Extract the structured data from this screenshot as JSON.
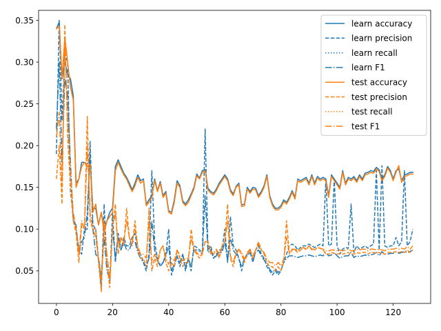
{
  "chart_data": {
    "type": "line",
    "title": "",
    "xlabel": "",
    "ylabel": "",
    "xlim": [
      -6.35,
      133.35
    ],
    "ylim": [
      0.011,
      0.362
    ],
    "xticks": [
      0,
      20,
      40,
      60,
      80,
      100,
      120
    ],
    "yticks": [
      0.05,
      0.1,
      0.15,
      0.2,
      0.25,
      0.3,
      0.35
    ],
    "legend_position": "top-right",
    "grid": false,
    "colors": {
      "learn": "#1f77b4",
      "test": "#ff7f0e"
    },
    "x_start": 0,
    "series": [
      {
        "name": "learn accuracy",
        "color": "#1f77b4",
        "dash": "solid",
        "values": [
          0.34,
          0.348,
          0.28,
          0.3,
          0.285,
          0.28,
          0.26,
          0.155,
          0.16,
          0.18,
          0.18,
          0.178,
          0.182,
          0.125,
          0.125,
          0.105,
          0.12,
          0.1,
          0.11,
          0.12,
          0.125,
          0.175,
          0.183,
          0.175,
          0.167,
          0.162,
          0.155,
          0.147,
          0.155,
          0.165,
          0.158,
          0.16,
          0.13,
          0.135,
          0.14,
          0.16,
          0.146,
          0.157,
          0.14,
          0.145,
          0.122,
          0.12,
          0.135,
          0.158,
          0.152,
          0.134,
          0.13,
          0.135,
          0.142,
          0.15,
          0.166,
          0.161,
          0.17,
          0.171,
          0.149,
          0.145,
          0.143,
          0.148,
          0.155,
          0.16,
          0.165,
          0.16,
          0.147,
          0.142,
          0.151,
          0.155,
          0.129,
          0.13,
          0.15,
          0.145,
          0.15,
          0.149,
          0.14,
          0.145,
          0.152,
          0.165,
          0.14,
          0.13,
          0.125,
          0.125,
          0.128,
          0.135,
          0.132,
          0.138,
          0.146,
          0.138,
          0.16,
          0.158,
          0.16,
          0.162,
          0.155,
          0.165,
          0.155,
          0.163,
          0.16,
          0.162,
          0.16,
          0.14,
          0.165,
          0.16,
          0.155,
          0.15,
          0.17,
          0.155,
          0.162,
          0.16,
          0.163,
          0.158,
          0.165,
          0.16,
          0.167,
          0.168,
          0.17,
          0.169,
          0.174,
          0.171,
          0.16,
          0.165,
          0.175,
          0.17,
          0.16,
          0.17,
          0.172,
          0.158,
          0.165,
          0.166,
          0.168,
          0.168
        ]
      },
      {
        "name": "learn precision",
        "color": "#1f77b4",
        "dash": "dashed",
        "values": [
          0.19,
          0.35,
          0.23,
          0.31,
          0.3,
          0.145,
          0.115,
          0.1,
          0.075,
          0.07,
          0.1,
          0.1,
          0.205,
          0.105,
          0.1,
          0.065,
          0.03,
          0.13,
          0.06,
          0.035,
          0.12,
          0.06,
          0.095,
          0.075,
          0.09,
          0.08,
          0.08,
          0.09,
          0.095,
          0.075,
          0.07,
          0.06,
          0.05,
          0.07,
          0.17,
          0.085,
          0.065,
          0.055,
          0.06,
          0.07,
          0.1,
          0.045,
          0.055,
          0.068,
          0.055,
          0.07,
          0.05,
          0.065,
          0.05,
          0.08,
          0.078,
          0.075,
          0.072,
          0.22,
          0.075,
          0.08,
          0.065,
          0.07,
          0.075,
          0.075,
          0.1,
          0.06,
          0.115,
          0.08,
          0.075,
          0.065,
          0.05,
          0.065,
          0.07,
          0.075,
          0.06,
          0.075,
          0.08,
          0.07,
          0.065,
          0.055,
          0.05,
          0.045,
          0.05,
          0.045,
          0.05,
          0.06,
          0.07,
          0.08,
          0.082,
          0.08,
          0.075,
          0.078,
          0.08,
          0.08,
          0.082,
          0.08,
          0.078,
          0.08,
          0.082,
          0.08,
          0.16,
          0.08,
          0.082,
          0.16,
          0.08,
          0.07,
          0.076,
          0.078,
          0.077,
          0.13,
          0.072,
          0.08,
          0.076,
          0.078,
          0.08,
          0.077,
          0.08,
          0.082,
          0.17,
          0.075,
          0.176,
          0.08,
          0.078,
          0.08,
          0.08,
          0.09,
          0.08,
          0.085,
          0.17,
          0.08,
          0.085,
          0.1
        ]
      },
      {
        "name": "learn recall",
        "color": "#1f77b4",
        "dash": "dotted",
        "values": [
          0.34,
          0.348,
          0.28,
          0.3,
          0.285,
          0.28,
          0.26,
          0.155,
          0.16,
          0.18,
          0.18,
          0.178,
          0.182,
          0.125,
          0.125,
          0.105,
          0.12,
          0.1,
          0.11,
          0.12,
          0.125,
          0.175,
          0.183,
          0.175,
          0.167,
          0.162,
          0.155,
          0.147,
          0.155,
          0.165,
          0.158,
          0.16,
          0.13,
          0.135,
          0.14,
          0.16,
          0.146,
          0.157,
          0.14,
          0.145,
          0.122,
          0.12,
          0.135,
          0.158,
          0.152,
          0.134,
          0.13,
          0.135,
          0.142,
          0.15,
          0.166,
          0.161,
          0.17,
          0.171,
          0.149,
          0.145,
          0.143,
          0.148,
          0.155,
          0.16,
          0.165,
          0.16,
          0.147,
          0.142,
          0.151,
          0.155,
          0.129,
          0.13,
          0.15,
          0.145,
          0.15,
          0.149,
          0.14,
          0.145,
          0.152,
          0.165,
          0.14,
          0.13,
          0.125,
          0.125,
          0.128,
          0.135,
          0.132,
          0.138,
          0.146,
          0.138,
          0.16,
          0.158,
          0.16,
          0.162,
          0.155,
          0.165,
          0.155,
          0.163,
          0.16,
          0.162,
          0.16,
          0.14,
          0.165,
          0.16,
          0.155,
          0.15,
          0.17,
          0.155,
          0.162,
          0.16,
          0.163,
          0.158,
          0.165,
          0.16,
          0.167,
          0.168,
          0.17,
          0.169,
          0.174,
          0.171,
          0.16,
          0.165,
          0.175,
          0.17,
          0.16,
          0.17,
          0.172,
          0.158,
          0.165,
          0.166,
          0.168,
          0.168
        ]
      },
      {
        "name": "learn F1",
        "color": "#1f77b4",
        "dash": "dashdot",
        "values": [
          0.22,
          0.3,
          0.18,
          0.28,
          0.26,
          0.18,
          0.11,
          0.105,
          0.07,
          0.085,
          0.09,
          0.12,
          0.19,
          0.1,
          0.07,
          0.065,
          0.045,
          0.09,
          0.05,
          0.04,
          0.1,
          0.065,
          0.09,
          0.075,
          0.085,
          0.075,
          0.075,
          0.085,
          0.085,
          0.072,
          0.065,
          0.06,
          0.055,
          0.065,
          0.11,
          0.075,
          0.062,
          0.058,
          0.06,
          0.068,
          0.08,
          0.05,
          0.058,
          0.068,
          0.06,
          0.07,
          0.055,
          0.065,
          0.055,
          0.075,
          0.075,
          0.073,
          0.07,
          0.14,
          0.072,
          0.075,
          0.065,
          0.068,
          0.072,
          0.072,
          0.085,
          0.062,
          0.09,
          0.075,
          0.07,
          0.065,
          0.055,
          0.065,
          0.068,
          0.072,
          0.062,
          0.072,
          0.075,
          0.068,
          0.063,
          0.058,
          0.052,
          0.048,
          0.052,
          0.048,
          0.052,
          0.06,
          0.065,
          0.068,
          0.068,
          0.067,
          0.066,
          0.067,
          0.068,
          0.068,
          0.069,
          0.068,
          0.067,
          0.068,
          0.069,
          0.068,
          0.072,
          0.068,
          0.069,
          0.072,
          0.068,
          0.065,
          0.067,
          0.068,
          0.068,
          0.072,
          0.066,
          0.068,
          0.067,
          0.068,
          0.069,
          0.068,
          0.069,
          0.07,
          0.072,
          0.068,
          0.073,
          0.07,
          0.07,
          0.071,
          0.071,
          0.073,
          0.071,
          0.072,
          0.073,
          0.072,
          0.073,
          0.075
        ]
      },
      {
        "name": "test accuracy",
        "color": "#ff7f0e",
        "dash": "solid",
        "values": [
          0.34,
          0.343,
          0.28,
          0.33,
          0.3,
          0.27,
          0.255,
          0.15,
          0.16,
          0.175,
          0.18,
          0.175,
          0.178,
          0.12,
          0.13,
          0.105,
          0.12,
          0.095,
          0.11,
          0.115,
          0.12,
          0.17,
          0.18,
          0.172,
          0.165,
          0.16,
          0.152,
          0.145,
          0.152,
          0.162,
          0.155,
          0.158,
          0.128,
          0.132,
          0.138,
          0.158,
          0.145,
          0.155,
          0.138,
          0.143,
          0.12,
          0.118,
          0.132,
          0.155,
          0.15,
          0.132,
          0.128,
          0.132,
          0.14,
          0.148,
          0.164,
          0.16,
          0.168,
          0.17,
          0.147,
          0.143,
          0.141,
          0.146,
          0.153,
          0.158,
          0.163,
          0.158,
          0.145,
          0.14,
          0.15,
          0.153,
          0.127,
          0.128,
          0.148,
          0.143,
          0.148,
          0.147,
          0.138,
          0.143,
          0.15,
          0.163,
          0.138,
          0.128,
          0.123,
          0.123,
          0.126,
          0.133,
          0.13,
          0.136,
          0.144,
          0.136,
          0.158,
          0.156,
          0.158,
          0.16,
          0.153,
          0.163,
          0.153,
          0.161,
          0.158,
          0.16,
          0.158,
          0.138,
          0.163,
          0.158,
          0.153,
          0.148,
          0.168,
          0.153,
          0.16,
          0.158,
          0.161,
          0.156,
          0.163,
          0.158,
          0.165,
          0.166,
          0.168,
          0.167,
          0.172,
          0.169,
          0.158,
          0.163,
          0.173,
          0.168,
          0.158,
          0.168,
          0.176,
          0.156,
          0.163,
          0.164,
          0.166,
          0.166
        ]
      },
      {
        "name": "test precision",
        "color": "#ff7f0e",
        "dash": "dashed",
        "values": [
          0.16,
          0.2,
          0.13,
          0.345,
          0.21,
          0.15,
          0.11,
          0.095,
          0.06,
          0.105,
          0.1,
          0.235,
          0.11,
          0.1,
          0.1,
          0.06,
          0.025,
          0.11,
          0.06,
          0.03,
          0.1,
          0.13,
          0.07,
          0.09,
          0.08,
          0.125,
          0.09,
          0.08,
          0.11,
          0.075,
          0.065,
          0.065,
          0.055,
          0.125,
          0.05,
          0.065,
          0.055,
          0.075,
          0.08,
          0.06,
          0.05,
          0.06,
          0.055,
          0.075,
          0.065,
          0.055,
          0.06,
          0.06,
          0.1,
          0.075,
          0.07,
          0.065,
          0.07,
          0.085,
          0.085,
          0.07,
          0.07,
          0.075,
          0.065,
          0.08,
          0.085,
          0.13,
          0.065,
          0.055,
          0.07,
          0.075,
          0.07,
          0.06,
          0.07,
          0.075,
          0.065,
          0.075,
          0.085,
          0.075,
          0.07,
          0.06,
          0.055,
          0.055,
          0.05,
          0.055,
          0.05,
          0.06,
          0.11,
          0.07,
          0.075,
          0.075,
          0.072,
          0.075,
          0.078,
          0.075,
          0.08,
          0.075,
          0.075,
          0.078,
          0.077,
          0.075,
          0.07,
          0.07,
          0.072,
          0.071,
          0.07,
          0.071,
          0.07,
          0.071,
          0.072,
          0.07,
          0.07,
          0.072,
          0.071,
          0.072,
          0.072,
          0.07,
          0.072,
          0.072,
          0.071,
          0.072,
          0.071,
          0.07,
          0.072,
          0.072,
          0.072,
          0.073,
          0.072,
          0.073,
          0.072,
          0.075,
          0.072,
          0.075
        ]
      },
      {
        "name": "test recall",
        "color": "#ff7f0e",
        "dash": "dotted",
        "values": [
          0.34,
          0.343,
          0.28,
          0.33,
          0.3,
          0.27,
          0.255,
          0.15,
          0.16,
          0.175,
          0.18,
          0.175,
          0.178,
          0.12,
          0.13,
          0.105,
          0.12,
          0.095,
          0.11,
          0.115,
          0.12,
          0.17,
          0.18,
          0.172,
          0.165,
          0.16,
          0.152,
          0.145,
          0.152,
          0.162,
          0.155,
          0.158,
          0.128,
          0.132,
          0.138,
          0.158,
          0.145,
          0.155,
          0.138,
          0.143,
          0.12,
          0.118,
          0.132,
          0.155,
          0.15,
          0.132,
          0.128,
          0.132,
          0.14,
          0.148,
          0.164,
          0.16,
          0.168,
          0.17,
          0.147,
          0.143,
          0.141,
          0.146,
          0.153,
          0.158,
          0.163,
          0.158,
          0.145,
          0.14,
          0.15,
          0.153,
          0.127,
          0.128,
          0.148,
          0.143,
          0.148,
          0.147,
          0.138,
          0.143,
          0.15,
          0.163,
          0.138,
          0.128,
          0.123,
          0.123,
          0.126,
          0.133,
          0.13,
          0.136,
          0.144,
          0.136,
          0.158,
          0.156,
          0.158,
          0.16,
          0.153,
          0.163,
          0.153,
          0.161,
          0.158,
          0.16,
          0.158,
          0.138,
          0.163,
          0.158,
          0.153,
          0.148,
          0.168,
          0.153,
          0.16,
          0.158,
          0.161,
          0.156,
          0.163,
          0.158,
          0.165,
          0.166,
          0.168,
          0.167,
          0.172,
          0.169,
          0.158,
          0.163,
          0.173,
          0.168,
          0.158,
          0.168,
          0.176,
          0.156,
          0.163,
          0.164,
          0.166,
          0.166
        ]
      },
      {
        "name": "test F1",
        "color": "#ff7f0e",
        "dash": "dashdot",
        "values": [
          0.21,
          0.24,
          0.15,
          0.33,
          0.23,
          0.17,
          0.12,
          0.1,
          0.07,
          0.11,
          0.1,
          0.2,
          0.12,
          0.1,
          0.09,
          0.065,
          0.04,
          0.1,
          0.07,
          0.04,
          0.1,
          0.12,
          0.08,
          0.09,
          0.085,
          0.11,
          0.09,
          0.085,
          0.1,
          0.08,
          0.07,
          0.07,
          0.065,
          0.11,
          0.06,
          0.07,
          0.062,
          0.075,
          0.08,
          0.065,
          0.058,
          0.065,
          0.062,
          0.075,
          0.068,
          0.062,
          0.065,
          0.065,
          0.09,
          0.075,
          0.072,
          0.068,
          0.072,
          0.085,
          0.085,
          0.072,
          0.072,
          0.076,
          0.068,
          0.08,
          0.085,
          0.11,
          0.068,
          0.06,
          0.072,
          0.076,
          0.072,
          0.064,
          0.072,
          0.076,
          0.068,
          0.075,
          0.082,
          0.076,
          0.072,
          0.064,
          0.06,
          0.06,
          0.056,
          0.06,
          0.056,
          0.064,
          0.09,
          0.072,
          0.076,
          0.076,
          0.074,
          0.076,
          0.078,
          0.076,
          0.08,
          0.076,
          0.076,
          0.078,
          0.077,
          0.076,
          0.074,
          0.074,
          0.075,
          0.075,
          0.074,
          0.075,
          0.074,
          0.075,
          0.076,
          0.074,
          0.074,
          0.076,
          0.075,
          0.076,
          0.076,
          0.074,
          0.076,
          0.076,
          0.075,
          0.076,
          0.075,
          0.074,
          0.076,
          0.076,
          0.076,
          0.077,
          0.076,
          0.077,
          0.076,
          0.079,
          0.076,
          0.08
        ]
      }
    ]
  }
}
